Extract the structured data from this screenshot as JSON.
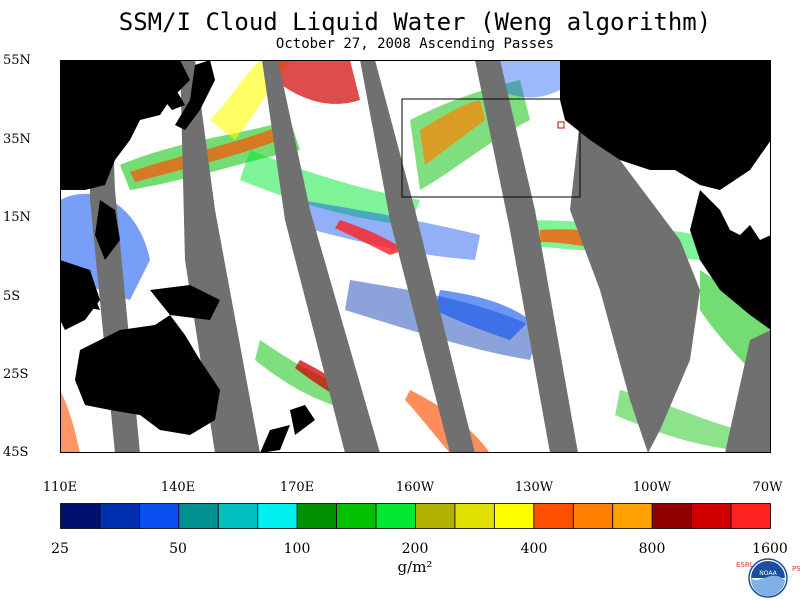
{
  "title": "SSM/I Cloud Liquid Water (Weng algorithm)",
  "subtitle": "October 27, 2008  Ascending Passes",
  "lat_labels": [
    "55N",
    "35N",
    "15N",
    "5S",
    "25S",
    "45S"
  ],
  "lon_labels": [
    "110E",
    "140E",
    "170E",
    "160W",
    "130W",
    "100W",
    "70W"
  ],
  "colorbar": {
    "colors": [
      "#001070",
      "#0030b0",
      "#0a50f0",
      "#009090",
      "#00c0c0",
      "#00f0f0",
      "#009000",
      "#00c000",
      "#00e830",
      "#b0b000",
      "#e0e000",
      "#ffff00",
      "#ff5000",
      "#ff8000",
      "#ffa000",
      "#900000",
      "#d00000",
      "#ff2020"
    ],
    "labels": [
      "25",
      "50",
      "100",
      "200",
      "400",
      "800",
      "1600"
    ],
    "unit": "g/m²"
  },
  "colors": {
    "land": "#000000",
    "no_data": "#707070",
    "clear": "#ffffff"
  },
  "logo": {
    "left_text": "ESRL",
    "right_text": "PSD",
    "center_text": "NOAA"
  }
}
